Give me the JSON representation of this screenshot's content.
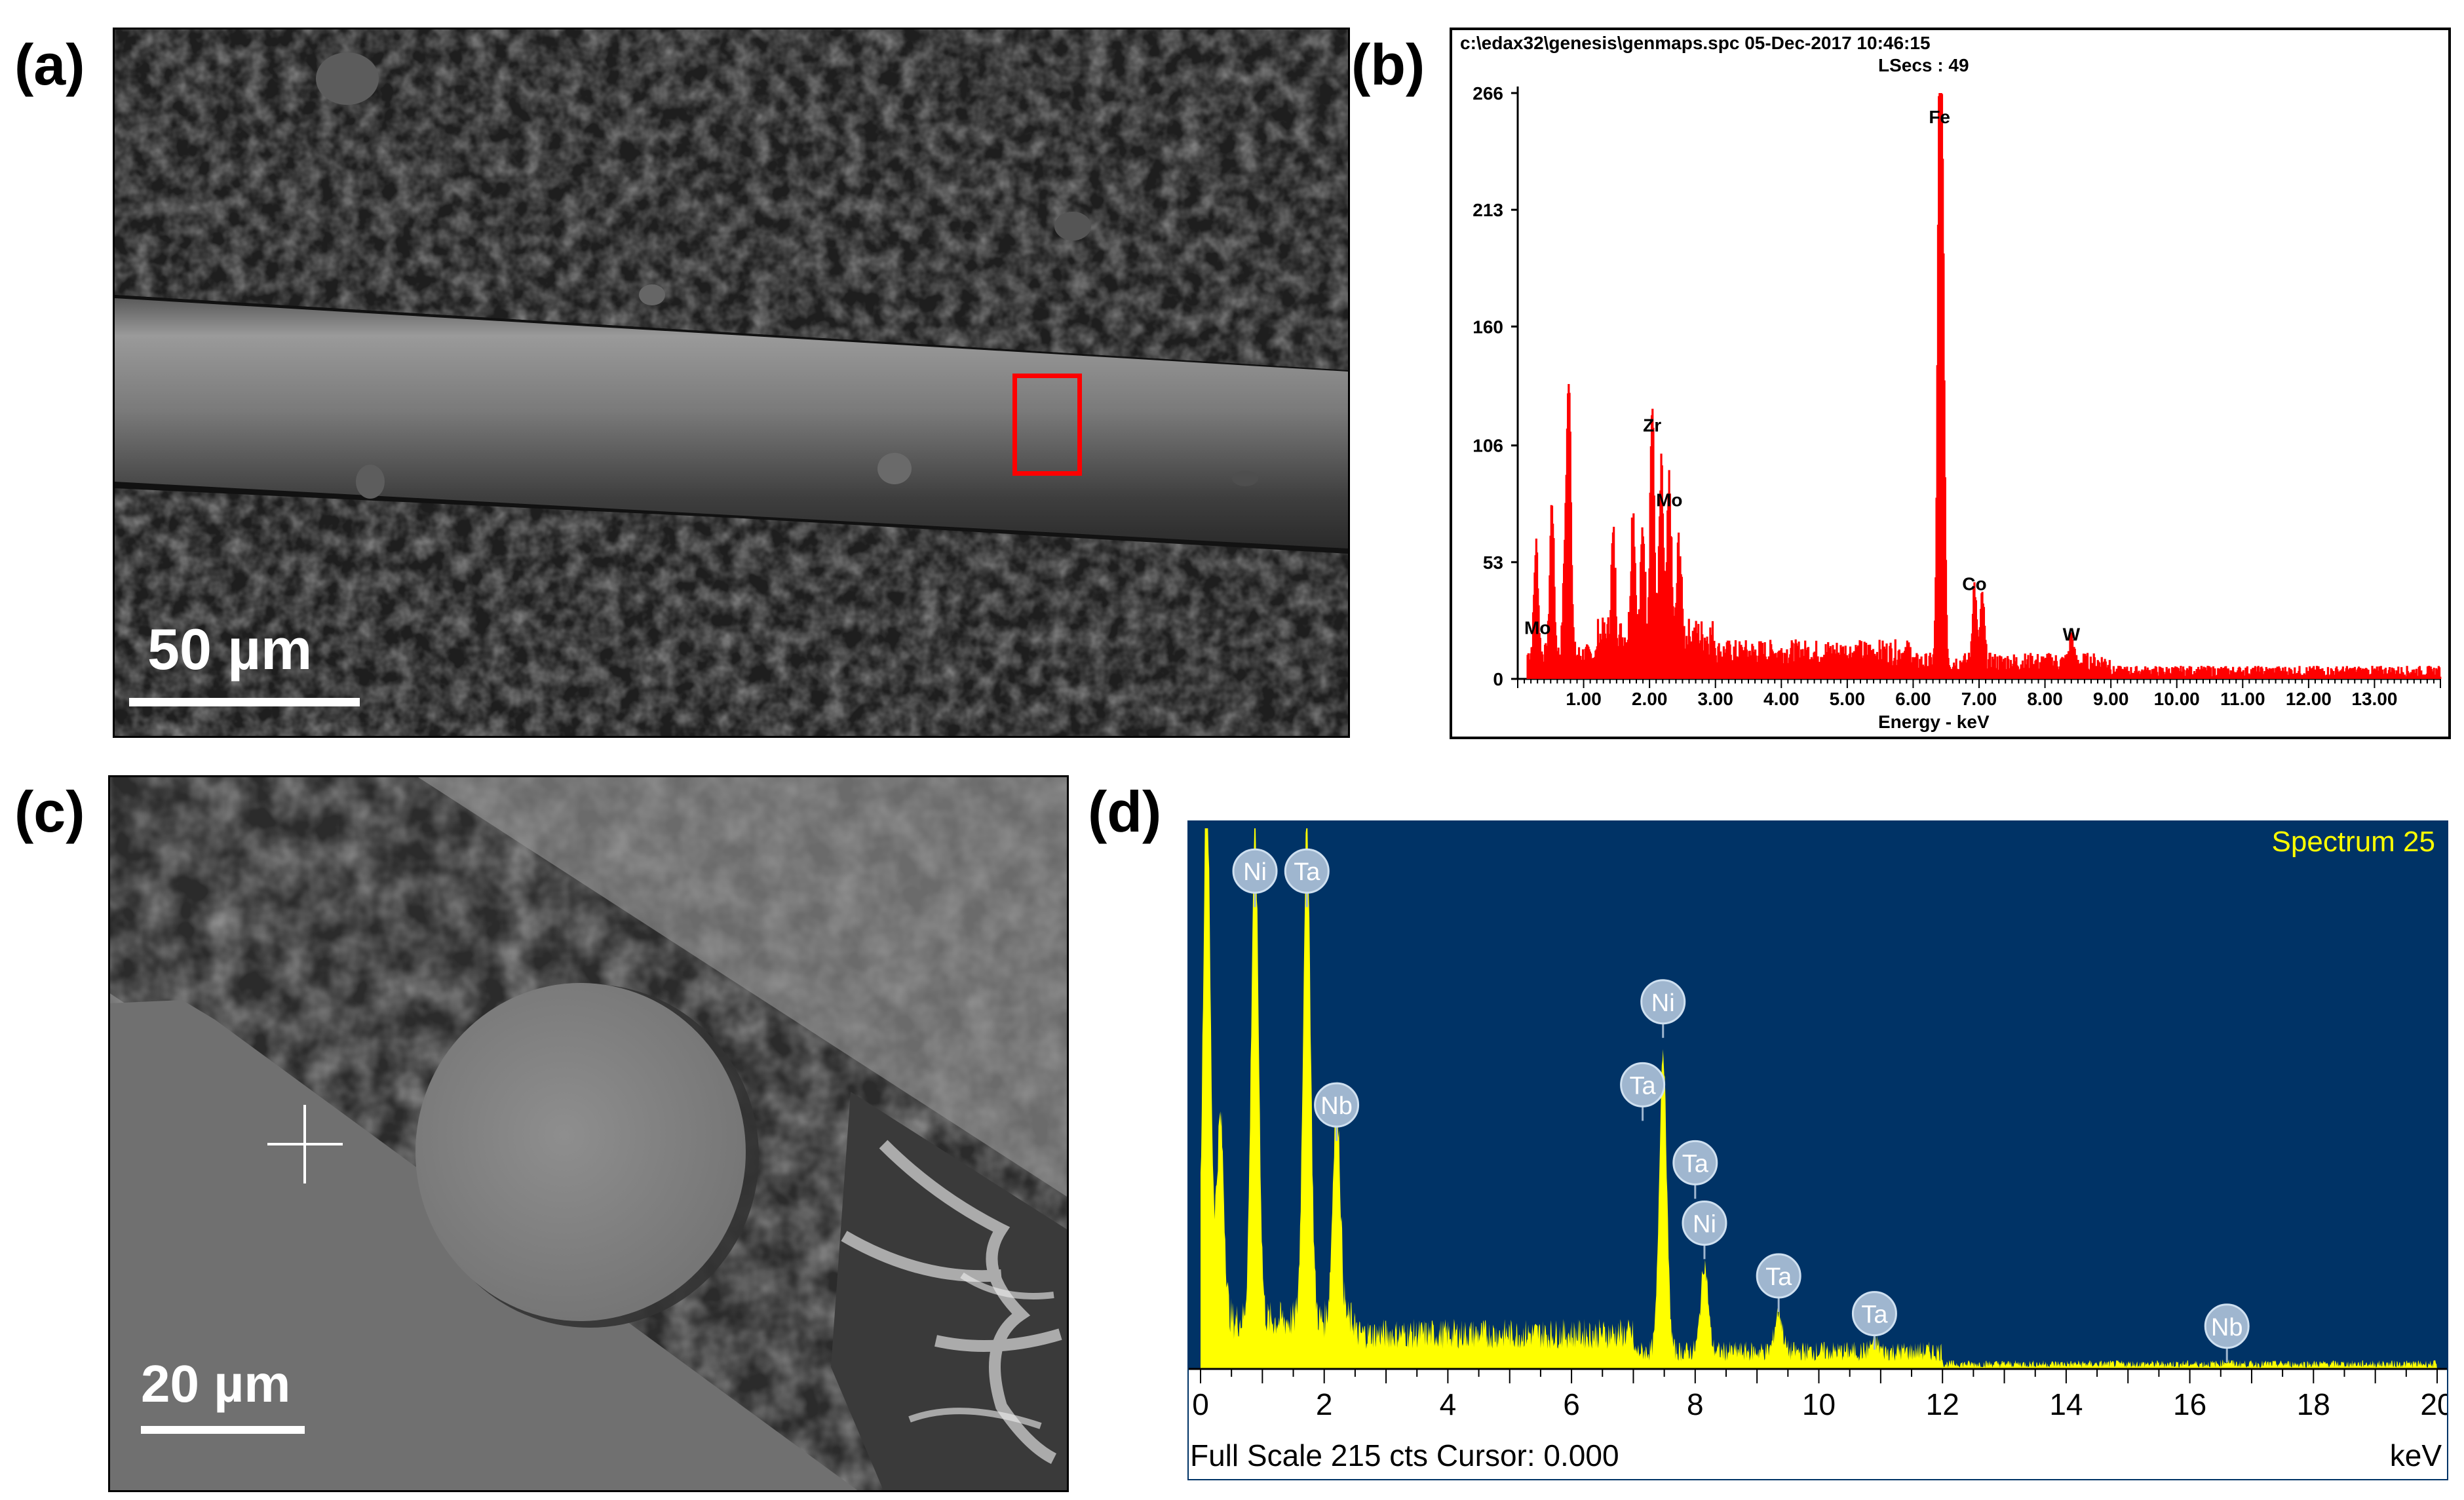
{
  "panels": {
    "a": {
      "label": "(a)",
      "scale_text": "50 µm"
    },
    "b": {
      "label": "(b)",
      "header_line1": "c:\\edax32\\genesis\\genmaps.spc  05-Dec-2017 10:46:15",
      "header_line2": "LSecs :  49",
      "xlabel": "Energy - keV",
      "peak_labels": [
        "Fe",
        "Zr",
        "Mo",
        "Co",
        "W",
        "Mo"
      ]
    },
    "c": {
      "label": "(c)",
      "scale_text": "20 µm"
    },
    "d": {
      "label": "(d)",
      "spectrum_title": "Spectrum 25",
      "footer_text": "Full Scale 215 cts Cursor: 0.000",
      "x_unit": "keV"
    }
  },
  "colors": {
    "b_spectrum": "#ff0000",
    "d_background": "#003366",
    "d_spectrum": "#ffff00",
    "d_title": "#ffff00",
    "a_roi_box": "#ff0000"
  },
  "chart_data": [
    {
      "type": "bar",
      "panel": "b",
      "title": "",
      "xlabel": "Energy - keV",
      "ylabel": "",
      "xlim": [
        0,
        14
      ],
      "ylim": [
        0,
        266
      ],
      "x_ticks": [
        "1.00",
        "2.00",
        "3.00",
        "4.00",
        "5.00",
        "6.00",
        "7.00",
        "8.00",
        "9.00",
        "10.00",
        "11.00",
        "12.00",
        "13.00"
      ],
      "y_ticks": [
        "0",
        "53",
        "106",
        "160",
        "213",
        "266"
      ],
      "peaks": [
        {
          "x": 0.28,
          "y": 50
        },
        {
          "x": 0.52,
          "y": 70
        },
        {
          "x": 0.72,
          "y": 45
        },
        {
          "x": 0.78,
          "y": 120
        },
        {
          "x": 1.45,
          "y": 45
        },
        {
          "x": 1.75,
          "y": 60
        },
        {
          "x": 1.9,
          "y": 50
        },
        {
          "x": 2.04,
          "y": 105
        },
        {
          "x": 2.18,
          "y": 75
        },
        {
          "x": 2.3,
          "y": 70
        },
        {
          "x": 2.45,
          "y": 45
        },
        {
          "x": 6.4,
          "y": 245
        },
        {
          "x": 6.45,
          "y": 165
        },
        {
          "x": 6.93,
          "y": 35
        },
        {
          "x": 7.05,
          "y": 30
        },
        {
          "x": 8.4,
          "y": 12
        }
      ],
      "peak_annotations": [
        {
          "label": "Fe",
          "x": 6.4,
          "y": 250
        },
        {
          "label": "Zr",
          "x": 2.04,
          "y": 110
        },
        {
          "label": "Mo",
          "x": 2.3,
          "y": 76
        },
        {
          "label": "Co",
          "x": 6.93,
          "y": 38
        },
        {
          "label": "W",
          "x": 8.4,
          "y": 15
        },
        {
          "label": "Mo",
          "x": 0.3,
          "y": 18
        }
      ]
    },
    {
      "type": "area",
      "panel": "d",
      "title": "Spectrum 25",
      "xlabel": "keV",
      "ylabel": "",
      "xlim": [
        0,
        20
      ],
      "ylim": [
        0,
        215
      ],
      "x_ticks": [
        "0",
        "2",
        "4",
        "6",
        "8",
        "10",
        "12",
        "14",
        "16",
        "18",
        "20"
      ],
      "peaks": [
        {
          "x": 0.1,
          "y": 215
        },
        {
          "x": 0.32,
          "y": 80
        },
        {
          "x": 0.88,
          "y": 195
        },
        {
          "x": 1.72,
          "y": 198
        },
        {
          "x": 2.2,
          "y": 90
        },
        {
          "x": 7.48,
          "y": 120
        },
        {
          "x": 8.15,
          "y": 35
        },
        {
          "x": 9.35,
          "y": 16
        },
        {
          "x": 10.9,
          "y": 4
        },
        {
          "x": 16.6,
          "y": 1
        }
      ],
      "peak_annotations": [
        {
          "label": "Ni",
          "x": 0.88,
          "y": 198
        },
        {
          "label": "Ta",
          "x": 1.72,
          "y": 198
        },
        {
          "label": "Nb",
          "x": 2.2,
          "y": 105
        },
        {
          "label": "Ni",
          "x": 7.48,
          "y": 146
        },
        {
          "label": "Ta",
          "x": 7.15,
          "y": 113
        },
        {
          "label": "Ta",
          "x": 8.0,
          "y": 82
        },
        {
          "label": "Ni",
          "x": 8.15,
          "y": 58
        },
        {
          "label": "Ta",
          "x": 9.35,
          "y": 37
        },
        {
          "label": "Ta",
          "x": 10.9,
          "y": 22
        },
        {
          "label": "Nb",
          "x": 16.6,
          "y": 17
        }
      ]
    }
  ]
}
